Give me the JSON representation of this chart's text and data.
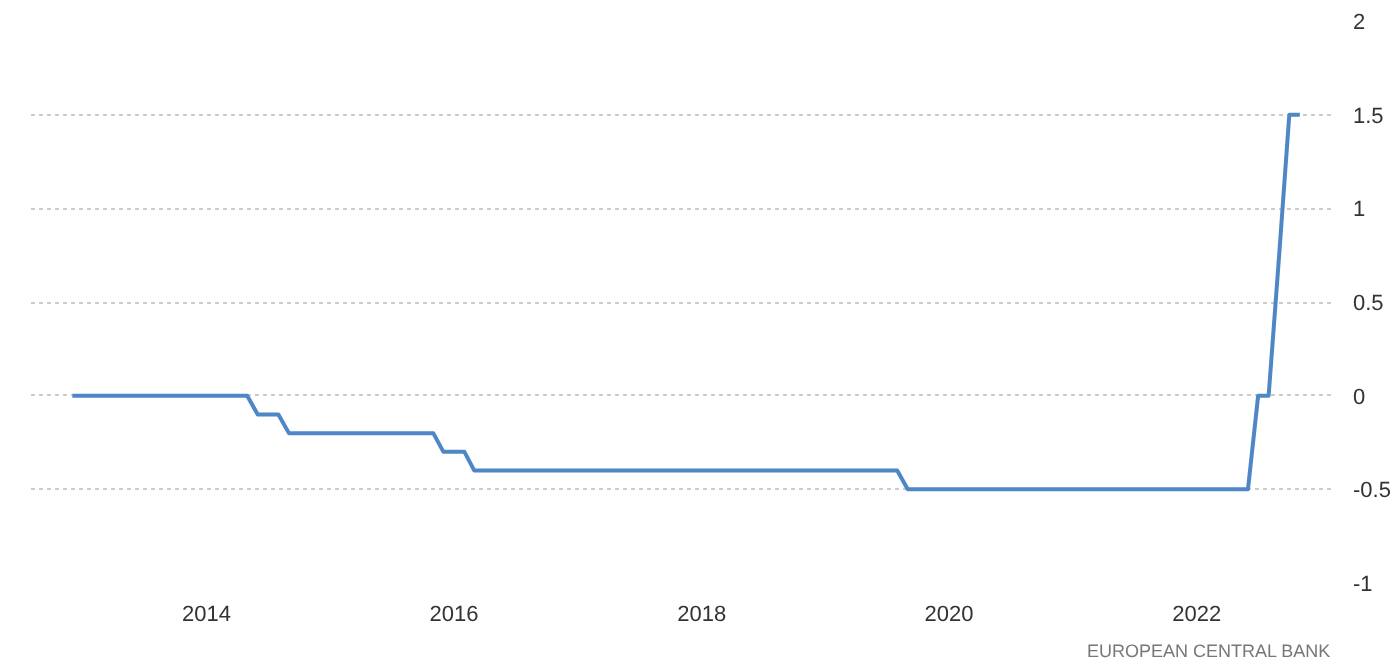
{
  "chart_data": {
    "type": "line",
    "x": [
      "2012-12",
      "2014-05",
      "2014-06",
      "2014-08",
      "2014-09",
      "2015-11",
      "2015-12",
      "2016-02",
      "2016-03",
      "2019-08",
      "2019-09",
      "2022-06",
      "2022-07",
      "2022-08",
      "2022-09",
      "2022-10",
      "2022-11"
    ],
    "series": [
      {
        "color": "#4f86c6",
        "values": [
          0,
          0,
          -0.1,
          -0.1,
          -0.2,
          -0.2,
          -0.3,
          -0.3,
          -0.4,
          -0.4,
          -0.5,
          -0.5,
          0,
          0,
          0.75,
          1.5,
          1.5
        ]
      }
    ],
    "xlim": [
      "2012-08",
      "2023-02"
    ],
    "xticks": [
      "2014",
      "2016",
      "2018",
      "2020",
      "2022"
    ],
    "ylim": [
      -1,
      2
    ],
    "yticks": [
      -1,
      -0.5,
      0,
      0.5,
      1,
      1.5,
      2
    ],
    "grid": "y",
    "marker": "none",
    "line_style": "solid",
    "annotations": [
      "EUROPEAN CENTRAL BANK"
    ]
  }
}
